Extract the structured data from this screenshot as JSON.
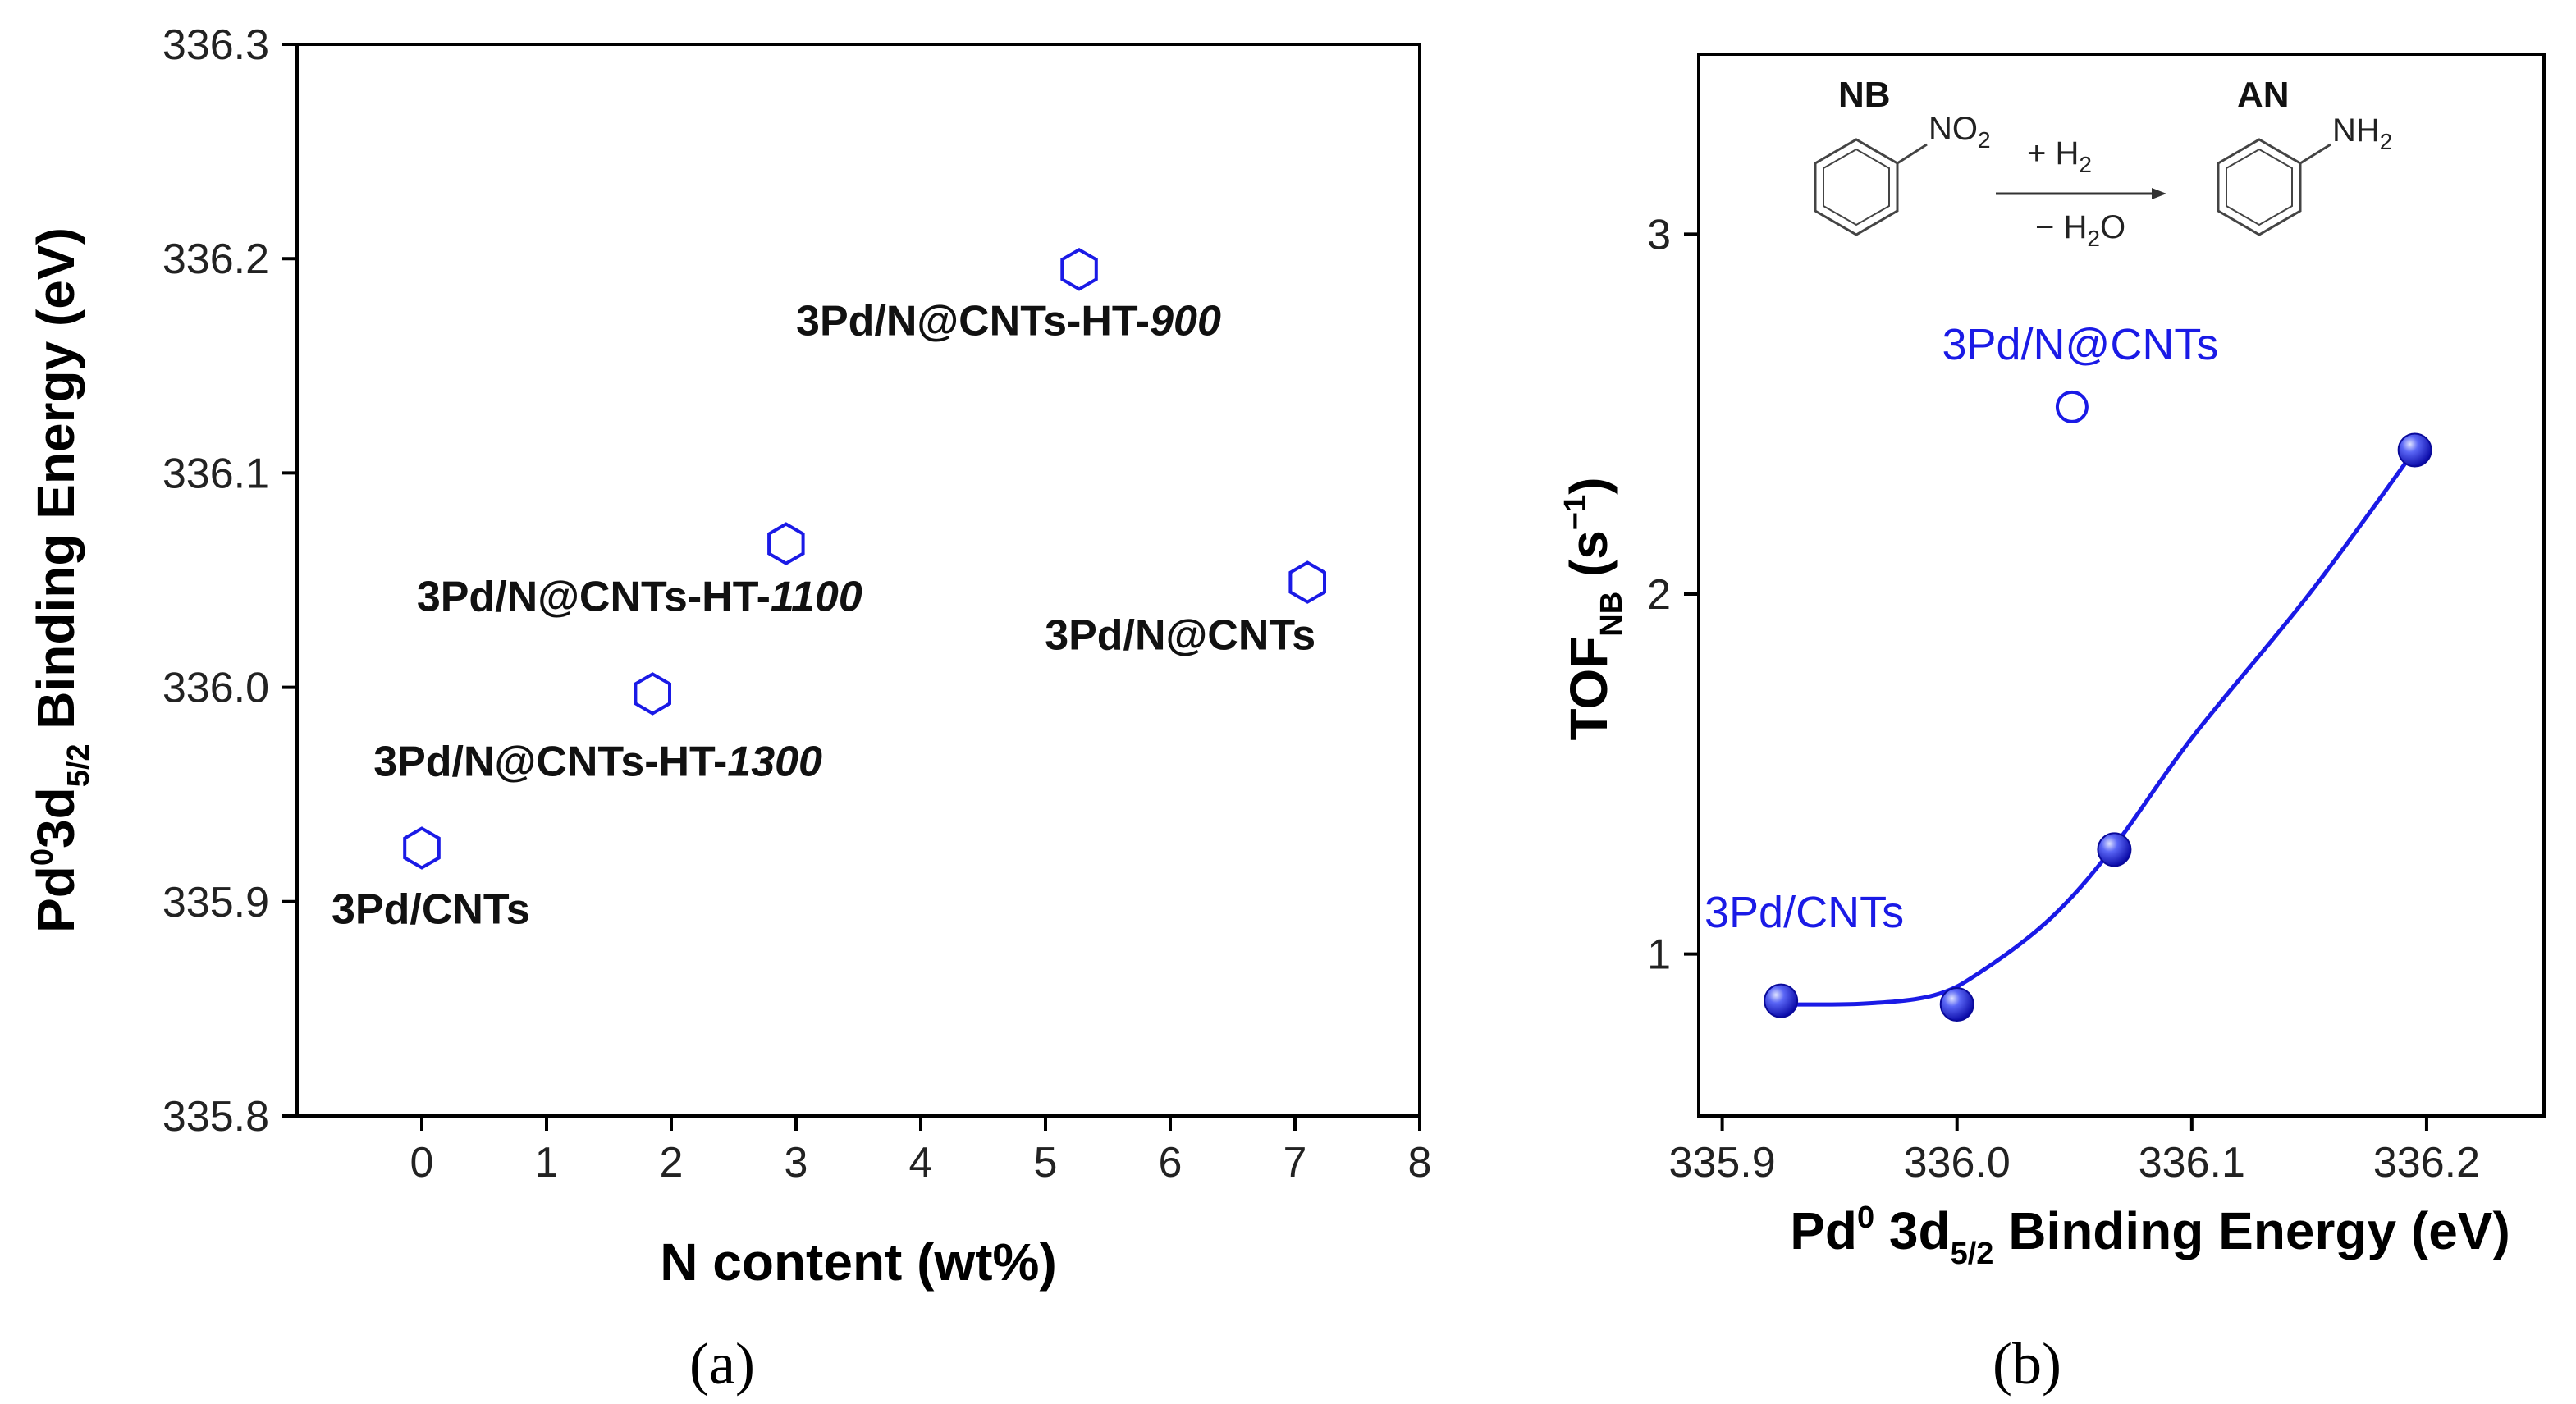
{
  "charts": [
    {
      "panel_label": "(a)",
      "chart_data": {
        "type": "scatter",
        "xlabel": "N content (wt%)",
        "ylabel_parts": {
          "main": "Pd",
          "sup": "0",
          "mid": "3d",
          "sub": "5/2",
          "rest": " Binding Energy (eV)"
        },
        "xlim": [
          -1,
          8
        ],
        "ylim": [
          335.8,
          336.3
        ],
        "x_ticks": [
          0,
          1,
          2,
          3,
          4,
          5,
          6,
          7,
          8
        ],
        "y_ticks": [
          "335.8",
          "335.9",
          "336.0",
          "336.1",
          "336.2",
          "336.3"
        ],
        "marker": "hexagon-open",
        "color": "#1a1ae6",
        "points": [
          {
            "x": 0.0,
            "y": 335.925,
            "label_main": "3Pd/CNTs",
            "label_italic": ""
          },
          {
            "x": 1.85,
            "y": 335.997,
            "label_main": "3Pd/N@CNTs-HT-",
            "label_italic": "1300"
          },
          {
            "x": 2.92,
            "y": 336.067,
            "label_main": "3Pd/N@CNTs-HT-",
            "label_italic": "1100"
          },
          {
            "x": 5.27,
            "y": 336.195,
            "label_main": "3Pd/N@CNTs-HT-",
            "label_italic": "900"
          },
          {
            "x": 7.1,
            "y": 336.049,
            "label_main": "3Pd/N@CNTs",
            "label_italic": ""
          }
        ]
      }
    },
    {
      "panel_label": "(b)",
      "chart_data": {
        "type": "line",
        "xlabel_parts": {
          "main": "Pd",
          "sup": "0",
          "mid": " 3d",
          "sub": "5/2",
          "rest": " Binding Energy (eV)"
        },
        "ylabel_parts": {
          "main": "TOF",
          "sub": "NB",
          "rest": " (s",
          "sup": "−1",
          "end": ")"
        },
        "xlim": [
          335.89,
          336.25
        ],
        "ylim": [
          0.55,
          3.5
        ],
        "x_ticks": [
          "335.9",
          "336.0",
          "336.1",
          "336.2"
        ],
        "y_ticks": [
          "1",
          "2",
          "3"
        ],
        "color": "#1a1ae6",
        "series": [
          {
            "name": "",
            "marker": "sphere",
            "points": [
              {
                "x": 335.925,
                "y": 0.87
              },
              {
                "x": 336.0,
                "y": 0.86
              },
              {
                "x": 336.067,
                "y": 1.29
              },
              {
                "x": 336.195,
                "y": 2.4
              }
            ],
            "curve": [
              {
                "x": 335.925,
                "y": 0.86
              },
              {
                "x": 335.96,
                "y": 0.862
              },
              {
                "x": 335.99,
                "y": 0.885
              },
              {
                "x": 336.01,
                "y": 0.95
              },
              {
                "x": 336.04,
                "y": 1.1
              },
              {
                "x": 336.067,
                "y": 1.3
              },
              {
                "x": 336.1,
                "y": 1.6
              },
              {
                "x": 336.15,
                "y": 2.0
              },
              {
                "x": 336.195,
                "y": 2.4
              }
            ]
          }
        ],
        "outlier": {
          "x": 336.049,
          "y": 2.52,
          "marker": "circle-open",
          "label": "3Pd/N@CNTs"
        },
        "annotation_cnts": "3Pd/CNTs",
        "scheme": {
          "reactant": "NB",
          "reactant_group": "NO",
          "reactant_group_sub": "2",
          "product": "AN",
          "product_group": "NH",
          "product_group_sub": "2",
          "reagent_top": "+ H",
          "reagent_top_sub": "2",
          "reagent_bottom": "− H",
          "reagent_bottom_sub": "2",
          "reagent_bottom_end": "O"
        }
      }
    }
  ]
}
